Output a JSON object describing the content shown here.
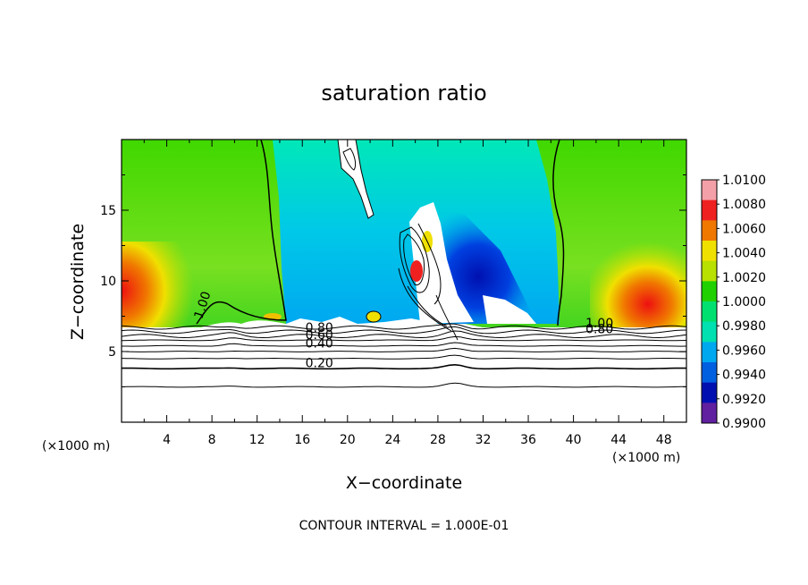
{
  "chart_data": {
    "type": "heatmap",
    "title": "saturation ratio",
    "xlabel": "X−coordinate",
    "ylabel": "Z−coordinate",
    "x_unit_left": "(×1000 m)",
    "x_unit_right": "(×1000 m)",
    "xlim": [
      0,
      50
    ],
    "ylim": [
      0,
      20
    ],
    "x_ticks": [
      4,
      8,
      12,
      16,
      20,
      24,
      28,
      32,
      36,
      40,
      44,
      48
    ],
    "x_tick_labels": [
      "4",
      "8",
      "12",
      "16",
      "20",
      "24",
      "28",
      "32",
      "36",
      "40",
      "44",
      "48"
    ],
    "y_ticks": [
      5,
      10,
      15
    ],
    "y_tick_labels": [
      "5",
      "10",
      "15"
    ],
    "colorbar": {
      "min": 0.99,
      "max": 1.01,
      "labels": [
        "1.0100",
        "1.0080",
        "1.0060",
        "1.0040",
        "1.0020",
        "1.0000",
        "0.9980",
        "0.9960",
        "0.9940",
        "0.9920",
        "0.9900"
      ],
      "colors": [
        "#f4a0a8",
        "#ee2020",
        "#f07800",
        "#f0e000",
        "#b8e000",
        "#20d000",
        "#00e070",
        "#00e0b0",
        "#00a8f0",
        "#0060e0",
        "#0010b0",
        "#6020a0"
      ]
    },
    "contour_interval_text": "CONTOUR INTERVAL = 1.000E-01",
    "contour_labels": [
      {
        "text": "1.00",
        "x": 7.5,
        "z": 8.2
      },
      {
        "text": "1.00",
        "x": 42.3,
        "z": 6.7
      },
      {
        "text": "0.80",
        "x": 42.3,
        "z": 6.3
      },
      {
        "text": "0.80",
        "x": 17.5,
        "z": 6.4
      },
      {
        "text": "0.60",
        "x": 17.5,
        "z": 5.9
      },
      {
        "text": "0.40",
        "x": 17.5,
        "z": 5.3
      },
      {
        "text": "0.20",
        "x": 17.5,
        "z": 3.9
      }
    ],
    "cloud_top_z": 6.6,
    "lower_contour_levels_z": [
      2.5,
      3.8,
      4.5,
      5.0,
      5.4,
      5.8,
      6.1,
      6.4,
      6.7
    ]
  }
}
